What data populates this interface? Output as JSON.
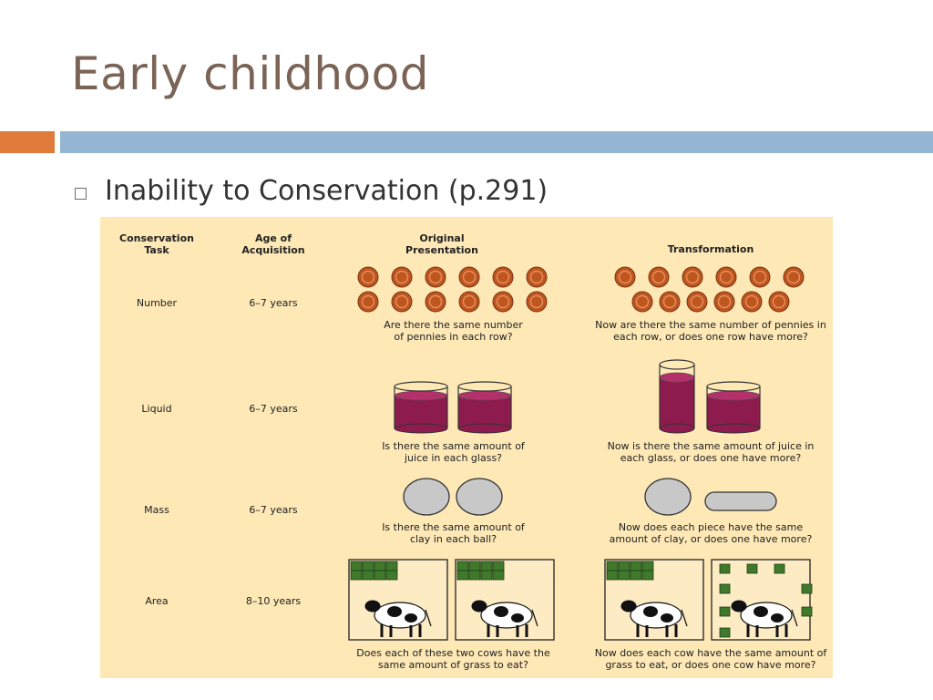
{
  "slide": {
    "title": "Early childhood",
    "bullet": "Inability to Conservation (p.291)"
  },
  "figure": {
    "headers": {
      "task": "Conservation Task",
      "age": "Age of Acquisition",
      "original": "Original Presentation",
      "transformation": "Transformation"
    },
    "rows": [
      {
        "task": "Number",
        "age": "6–7 years",
        "original_question": "Are there the same number of pennies in each row?",
        "transformation_question": "Now are there the same number of pennies in each row, or does one row have more?"
      },
      {
        "task": "Liquid",
        "age": "6–7 years",
        "original_question": "Is there the same amount of juice in each glass?",
        "transformation_question": "Now is there the same amount of juice in each glass, or does one have more?"
      },
      {
        "task": "Mass",
        "age": "6–7 years",
        "original_question": "Is there the same amount of clay in each ball?",
        "transformation_question": "Now does each piece have the same amount of clay, or does one have more?"
      },
      {
        "task": "Area",
        "age": "8–10 years",
        "original_question": "Does each of these two cows have the same amount of grass to eat?",
        "transformation_question": "Now does each cow have the same amount of grass to eat, or does one cow have more?"
      }
    ],
    "colors": {
      "background": "#fde8b6",
      "penny": "#c0561f",
      "juice": "#8e1b4d",
      "clay": "#c8c8c8",
      "grass": "#3f7a2c",
      "field": "#fdebc4"
    },
    "icons": [
      "penny-icon",
      "glass-icon",
      "clay-ball-icon",
      "cow-icon",
      "grass-square-icon"
    ]
  }
}
